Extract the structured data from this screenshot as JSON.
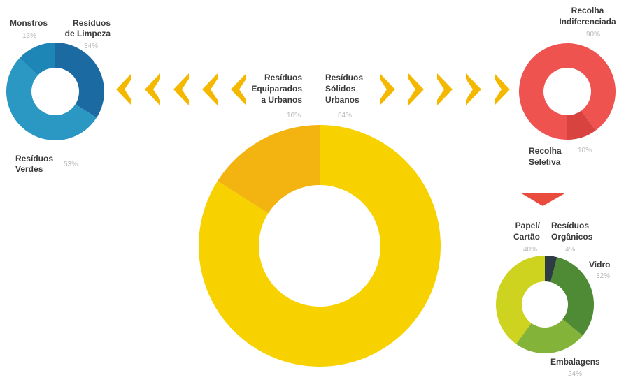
{
  "chart_data": [
    {
      "type": "pie",
      "role": "center",
      "title": "",
      "slices": [
        {
          "name": "Resíduos Sólidos Urbanos",
          "label_lines": [
            "Resíduos",
            "Sólidos",
            "Urbanos"
          ],
          "value": 84,
          "value_label": "84%",
          "color": "#f7d100"
        },
        {
          "name": "Resíduos Equiparados a Urbanos",
          "label_lines": [
            "Resíduos",
            "Equiparados",
            "a Urbanos"
          ],
          "value": 16,
          "value_label": "16%",
          "color": "#f3b411"
        }
      ]
    },
    {
      "type": "pie",
      "role": "left",
      "title": "",
      "slices": [
        {
          "name": "Resíduos de Limpeza",
          "label_lines": [
            "Resíduos",
            "de Limpeza"
          ],
          "value": 34,
          "value_label": "34%",
          "color": "#1c6aa2"
        },
        {
          "name": "Resíduos Verdes",
          "label_lines": [
            "Resíduos",
            "Verdes"
          ],
          "value": 53,
          "value_label": "53%",
          "color": "#2a98c3"
        },
        {
          "name": "Monstros",
          "label_lines": [
            "Monstros"
          ],
          "value": 13,
          "value_label": "13%",
          "color": "#1e86b6"
        }
      ]
    },
    {
      "type": "pie",
      "role": "right-top",
      "title": "",
      "slices": [
        {
          "name": "Recolha Indiferenciada",
          "label_lines": [
            "Recolha",
            "Indiferenciada"
          ],
          "value": 90,
          "value_label": "90%",
          "color": "#ef5350"
        },
        {
          "name": "Recolha Seletiva",
          "label_lines": [
            "Recolha",
            "Seletiva"
          ],
          "value": 10,
          "value_label": "10%",
          "color": "#d8433f"
        }
      ]
    },
    {
      "type": "pie",
      "role": "right-bottom",
      "title": "",
      "slices": [
        {
          "name": "Resíduos Orgânicos",
          "label_lines": [
            "Resíduos",
            "Orgânicos"
          ],
          "value": 4,
          "value_label": "4%",
          "color": "#2f3b44"
        },
        {
          "name": "Vidro",
          "label_lines": [
            "Vidro"
          ],
          "value": 32,
          "value_label": "32%",
          "color": "#4e8b34"
        },
        {
          "name": "Embalagens",
          "label_lines": [
            "Embalagens"
          ],
          "value": 24,
          "value_label": "24%",
          "color": "#84b33a"
        },
        {
          "name": "Papel/Cartão",
          "label_lines": [
            "Papel/",
            "Cartão"
          ],
          "value": 40,
          "value_label": "40%",
          "color": "#cdd31f"
        }
      ]
    }
  ],
  "colors": {
    "arrow_yellow": "#f5b800",
    "arrow_red": "#e94b3c",
    "label_text": "#3a3a3a",
    "percent_text": "#b9b9b9"
  }
}
